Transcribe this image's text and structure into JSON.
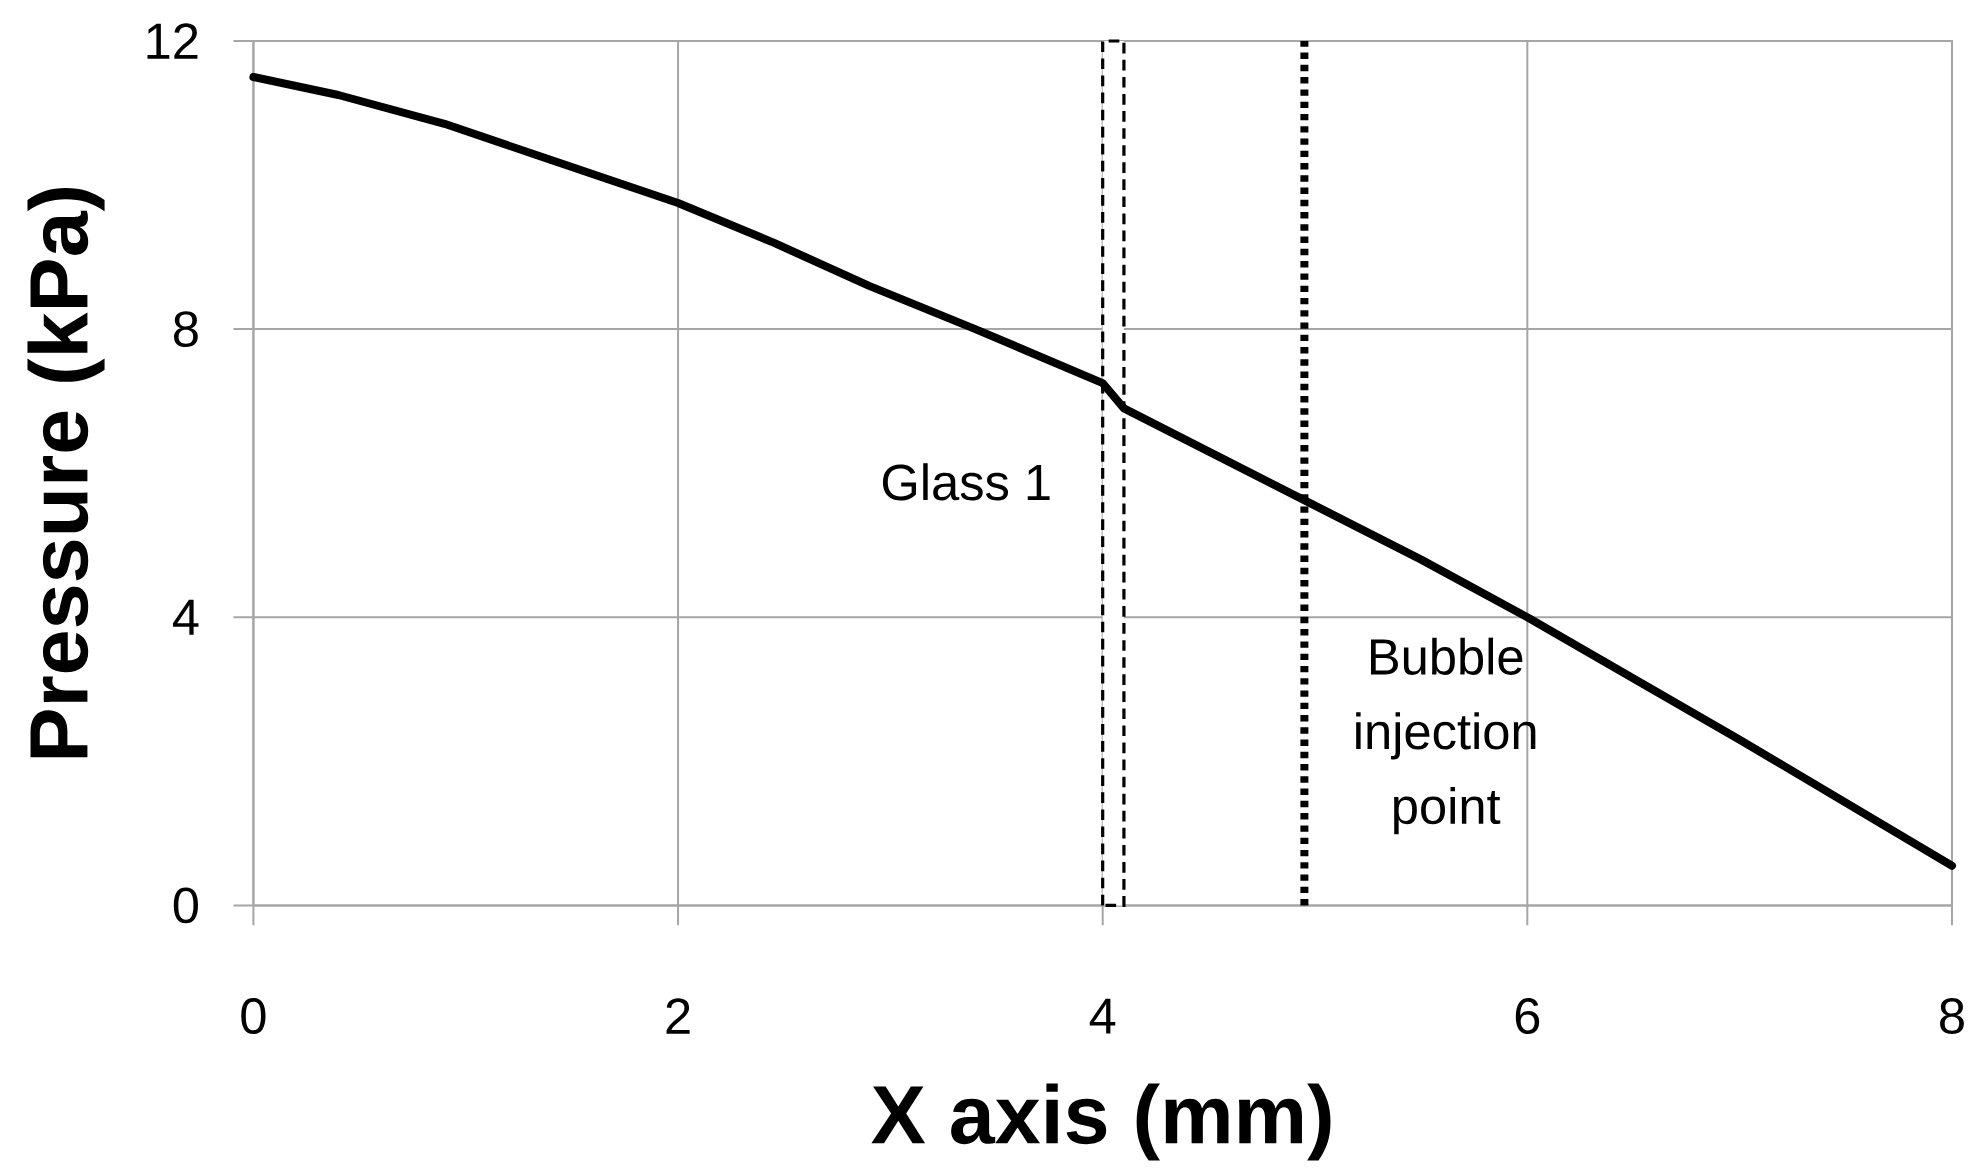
{
  "chart_data": {
    "type": "line",
    "xlabel": "X axis (mm)",
    "ylabel": "Pressure (kPa)",
    "x": [
      0,
      0.4,
      0.9,
      1.35,
      2,
      2.45,
      2.9,
      3.4,
      4,
      4.1,
      5,
      5.5,
      6,
      7,
      8
    ],
    "series": [
      {
        "color": "#000000",
        "values": [
          11.5,
          11.25,
          10.85,
          10.4,
          9.75,
          9.2,
          8.6,
          8.0,
          7.25,
          6.9,
          5.55,
          4.8,
          4.0,
          2.3,
          0.55
        ]
      }
    ],
    "xlim": [
      0,
      8
    ],
    "ylim": [
      0,
      12
    ],
    "xticks": [
      0,
      2,
      4,
      6,
      8
    ],
    "yticks": [
      0,
      4,
      8,
      12
    ],
    "grid": true,
    "line_style": "solid",
    "bands": [
      {
        "axis": "x",
        "from": 4.0,
        "to": 4.1,
        "label": "Glass 1",
        "color": "#000000"
      }
    ],
    "ref_lines": [
      {
        "axis": "x",
        "value": 4.95,
        "label": "Bubble injection point",
        "line_style": "dotted",
        "color": "#000000"
      }
    ]
  }
}
